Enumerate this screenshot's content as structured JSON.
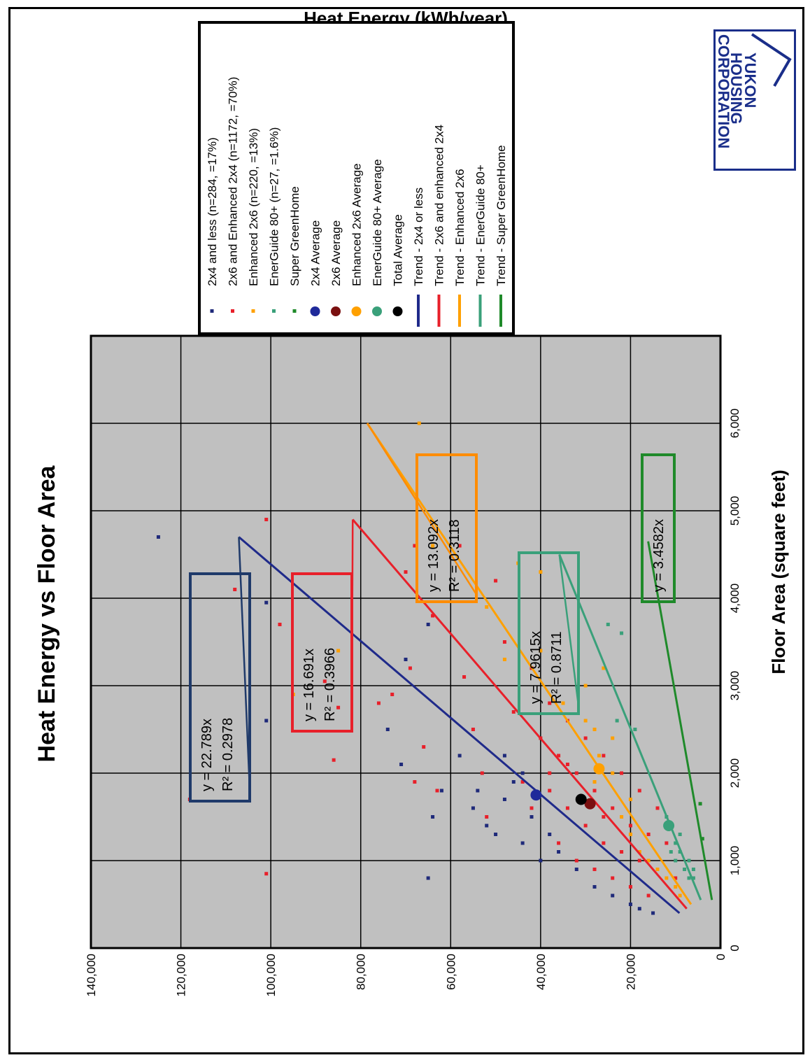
{
  "chart_data": {
    "type": "scatter",
    "title": "Heat Energy vs Floor Area",
    "xlabel": "Floor Area (square feet)",
    "ylabel": "Heat Energy (kWh/year)",
    "xlim": [
      0,
      7000
    ],
    "ylim": [
      0,
      140000
    ],
    "x_ticks": [
      0,
      1000,
      2000,
      3000,
      4000,
      5000,
      6000
    ],
    "x_tick_labels": [
      "0",
      "1,000",
      "2,000",
      "3,000",
      "4,000",
      "5,000",
      "6,000"
    ],
    "y_ticks": [
      0,
      20000,
      40000,
      60000,
      80000,
      100000,
      120000,
      140000
    ],
    "y_tick_labels": [
      "0",
      "20,000",
      "40,000",
      "60,000",
      "80,000",
      "100,000",
      "120,000",
      "140,000"
    ],
    "grid": true,
    "legend_position": "top-right",
    "background_color": "#c0c0c0",
    "series": [
      {
        "name": "2x4 and less  (n=284, =17%)",
        "kind": "scatter",
        "color": "#1f2a7a",
        "n": 284,
        "points": [
          [
            1700,
            118000
          ],
          [
            4700,
            125000
          ],
          [
            2600,
            101000
          ],
          [
            3950,
            101000
          ],
          [
            2500,
            74000
          ],
          [
            2100,
            71000
          ],
          [
            1500,
            64000
          ],
          [
            1800,
            62000
          ],
          [
            2200,
            58000
          ],
          [
            1600,
            55000
          ],
          [
            1400,
            52000
          ],
          [
            1700,
            48000
          ],
          [
            1900,
            46000
          ],
          [
            1200,
            44000
          ],
          [
            1500,
            42000
          ],
          [
            1000,
            40000
          ],
          [
            800,
            65000
          ],
          [
            3700,
            65000
          ],
          [
            3300,
            70000
          ],
          [
            1800,
            54000
          ],
          [
            1300,
            50000
          ],
          [
            1100,
            36000
          ],
          [
            900,
            32000
          ],
          [
            700,
            28000
          ],
          [
            600,
            24000
          ],
          [
            500,
            20000
          ],
          [
            450,
            18000
          ],
          [
            400,
            15000
          ],
          [
            1300,
            38000
          ],
          [
            1600,
            42000
          ],
          [
            2000,
            44000
          ],
          [
            2200,
            48000
          ]
        ]
      },
      {
        "name": "2x6 and Enhanced 2x4 (n=1172, =70%)",
        "kind": "scatter",
        "color": "#e8202a",
        "n": 1172,
        "points": [
          [
            1700,
            118000
          ],
          [
            4100,
            108000
          ],
          [
            4900,
            101000
          ],
          [
            850,
            101000
          ],
          [
            3700,
            98000
          ],
          [
            3050,
            88000
          ],
          [
            2150,
            86000
          ],
          [
            2750,
            85000
          ],
          [
            2800,
            76000
          ],
          [
            2900,
            73000
          ],
          [
            4300,
            70000
          ],
          [
            3200,
            69000
          ],
          [
            4600,
            68000
          ],
          [
            1900,
            68000
          ],
          [
            2300,
            66000
          ],
          [
            3800,
            64000
          ],
          [
            1800,
            63000
          ],
          [
            4600,
            58000
          ],
          [
            3100,
            57000
          ],
          [
            2500,
            55000
          ],
          [
            2000,
            53000
          ],
          [
            1500,
            52000
          ],
          [
            4200,
            50000
          ],
          [
            3500,
            48000
          ],
          [
            2700,
            46000
          ],
          [
            1900,
            44000
          ],
          [
            1600,
            42000
          ],
          [
            3200,
            42000
          ],
          [
            2400,
            40000
          ],
          [
            1800,
            38000
          ],
          [
            2800,
            38000
          ],
          [
            1200,
            36000
          ],
          [
            2200,
            36000
          ],
          [
            1600,
            34000
          ],
          [
            2600,
            34000
          ],
          [
            1000,
            32000
          ],
          [
            2000,
            32000
          ],
          [
            1400,
            30000
          ],
          [
            2400,
            30000
          ],
          [
            900,
            28000
          ],
          [
            1800,
            28000
          ],
          [
            1200,
            26000
          ],
          [
            2200,
            26000
          ],
          [
            800,
            24000
          ],
          [
            1600,
            24000
          ],
          [
            1100,
            22000
          ],
          [
            2000,
            22000
          ],
          [
            700,
            20000
          ],
          [
            1400,
            20000
          ],
          [
            1000,
            18000
          ],
          [
            1800,
            18000
          ],
          [
            600,
            16000
          ],
          [
            1300,
            16000
          ],
          [
            900,
            14000
          ],
          [
            1600,
            14000
          ],
          [
            1200,
            12000
          ],
          [
            800,
            10000
          ],
          [
            2000,
            38000
          ],
          [
            2100,
            34000
          ],
          [
            1500,
            26000
          ]
        ]
      },
      {
        "name": "Enhanced 2x6 (n=220, =13%)",
        "kind": "scatter",
        "color": "#ffa000",
        "n": 220,
        "points": [
          [
            6000,
            67000
          ],
          [
            4600,
            64000
          ],
          [
            4400,
            45000
          ],
          [
            4300,
            40000
          ],
          [
            3400,
            40000
          ],
          [
            3300,
            48000
          ],
          [
            3900,
            52000
          ],
          [
            2900,
            95000
          ],
          [
            3400,
            85000
          ],
          [
            2800,
            35000
          ],
          [
            3000,
            30000
          ],
          [
            2500,
            28000
          ],
          [
            2200,
            27000
          ],
          [
            1900,
            28000
          ],
          [
            1500,
            22000
          ],
          [
            1300,
            20000
          ],
          [
            1100,
            18000
          ],
          [
            1000,
            16000
          ],
          [
            900,
            14000
          ],
          [
            800,
            12000
          ],
          [
            700,
            10000
          ],
          [
            600,
            9000
          ],
          [
            2000,
            24000
          ],
          [
            1700,
            20000
          ],
          [
            2400,
            24000
          ],
          [
            3200,
            26000
          ],
          [
            2600,
            30000
          ]
        ]
      },
      {
        "name": "EnerGuide 80+ (n=27, =1.6%)",
        "kind": "scatter",
        "color": "#3aa07a",
        "n": 27,
        "points": [
          [
            3600,
            22000
          ],
          [
            3700,
            25000
          ],
          [
            2600,
            23000
          ],
          [
            2500,
            19000
          ],
          [
            1500,
            12000
          ],
          [
            1400,
            11000
          ],
          [
            1200,
            10000
          ],
          [
            1100,
            9000
          ],
          [
            1000,
            7000
          ],
          [
            900,
            6000
          ],
          [
            800,
            7000
          ],
          [
            1300,
            9000
          ],
          [
            1000,
            10000
          ],
          [
            900,
            8000
          ],
          [
            1100,
            11000
          ],
          [
            800,
            6000
          ]
        ]
      },
      {
        "name": "Super GreenHome",
        "kind": "scatter",
        "color": "#1f8a2a",
        "points": [
          [
            1650,
            4500
          ],
          [
            1250,
            4000
          ]
        ]
      },
      {
        "name": "2x4 Average",
        "kind": "average",
        "color": "#1f2a9a",
        "points": [
          [
            1750,
            41000
          ]
        ]
      },
      {
        "name": "2x6 Average",
        "kind": "average",
        "color": "#7a1010",
        "points": [
          [
            1650,
            29000
          ]
        ]
      },
      {
        "name": "Enhanced 2x6 Average",
        "kind": "average",
        "color": "#ffa000",
        "points": [
          [
            2050,
            27000
          ]
        ]
      },
      {
        "name": "EnerGuide 80+ Average",
        "kind": "average",
        "color": "#3aa07a",
        "points": [
          [
            1400,
            11500
          ]
        ]
      },
      {
        "name": "Total Average",
        "kind": "average",
        "color": "#000000",
        "points": [
          [
            1700,
            31000
          ]
        ]
      },
      {
        "name": "Trend - 2x4 or less",
        "kind": "trend",
        "color": "#1f2a8a",
        "slope": 22.789,
        "x_range": [
          400,
          4700
        ]
      },
      {
        "name": "Trend - 2x6 and enhanced 2x4",
        "kind": "trend",
        "color": "#e8202a",
        "slope": 16.691,
        "x_range": [
          450,
          4900
        ]
      },
      {
        "name": "Trend - Enhanced 2x6",
        "kind": "trend",
        "color": "#ffa000",
        "slope": 13.092,
        "x_range": [
          500,
          6000
        ]
      },
      {
        "name": "Trend - EnerGuide 80+",
        "kind": "trend",
        "color": "#3aa07a",
        "slope": 7.9615,
        "x_range": [
          550,
          4500
        ]
      },
      {
        "name": "Trend - Super GreenHome",
        "kind": "trend",
        "color": "#1f8a2a",
        "slope": 3.4582,
        "x_range": [
          550,
          4650
        ]
      }
    ],
    "annotations": [
      {
        "lines": [
          "y = 22.789x",
          "R² = 0.2978"
        ],
        "color": "#1f3a6a",
        "anchor_series": "Trend - 2x4 or less"
      },
      {
        "lines": [
          "y = 16.691x",
          "R² = 0.3966"
        ],
        "color": "#e8202a",
        "anchor_series": "Trend - 2x6 and enhanced 2x4"
      },
      {
        "lines": [
          "y = 13.092x",
          "R² = 0.3118"
        ],
        "color": "#ff8c00",
        "anchor_series": "Trend - Enhanced 2x6"
      },
      {
        "lines": [
          "y = 7.9615x",
          "R² = 0.8711"
        ],
        "color": "#3aa07a",
        "anchor_series": "Trend - EnerGuide 80+"
      },
      {
        "lines": [
          "y = 3.4582x"
        ],
        "color": "#1f8a2a",
        "anchor_series": "Trend - Super GreenHome"
      }
    ]
  },
  "logo": {
    "lines": [
      "YUKON",
      "HOUSING",
      "CORPORATION"
    ],
    "color": "#1a2e8a"
  }
}
